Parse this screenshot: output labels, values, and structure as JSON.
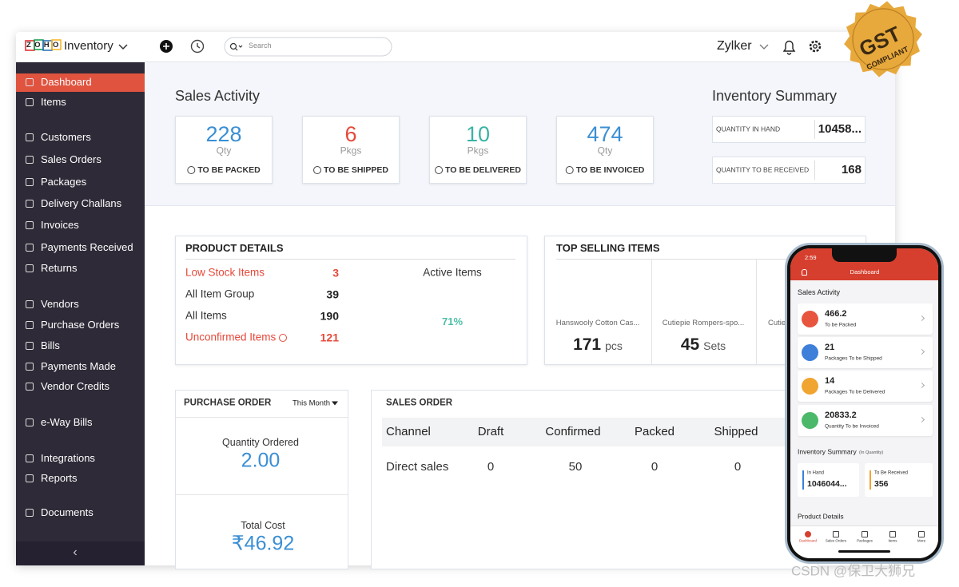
{
  "topbar": {
    "logo": "ZOHO",
    "app": "Inventory",
    "search": "Search",
    "org": "Zylker"
  },
  "sidebar": {
    "items": [
      "Dashboard",
      "Items",
      "Customers",
      "Sales Orders",
      "Packages",
      "Delivery Challans",
      "Invoices",
      "Payments Received",
      "Returns",
      "Vendors",
      "Purchase Orders",
      "Bills",
      "Payments Made",
      "Vendor Credits",
      "e-Way Bills",
      "Integrations",
      "Reports",
      "Documents"
    ],
    "collapse": "‹"
  },
  "sales_activity": {
    "title": "Sales Activity",
    "cards": [
      {
        "value": "228",
        "unit": "Qty",
        "label": "TO BE PACKED",
        "color": "#3b8fd4"
      },
      {
        "value": "6",
        "unit": "Pkgs",
        "label": "TO BE SHIPPED",
        "color": "#e5493a"
      },
      {
        "value": "10",
        "unit": "Pkgs",
        "label": "TO BE DELIVERED",
        "color": "#3bb3a6"
      },
      {
        "value": "474",
        "unit": "Qty",
        "label": "TO BE INVOICED",
        "color": "#3b8fd4"
      }
    ]
  },
  "inventory_summary": {
    "title": "Inventory Summary",
    "rows": [
      {
        "label": "QUANTITY IN HAND",
        "value": "10458..."
      },
      {
        "label": "QUANTITY TO BE RECEIVED",
        "value": "168"
      }
    ]
  },
  "product_details": {
    "title": "PRODUCT DETAILS",
    "rows": [
      {
        "label": "Low Stock Items",
        "value": "3",
        "alert": true
      },
      {
        "label": "All Item Group",
        "value": "39",
        "alert": false
      },
      {
        "label": "All Items",
        "value": "190",
        "alert": false
      },
      {
        "label": "Unconfirmed Items",
        "value": "121",
        "alert": true
      }
    ],
    "active_items": {
      "title": "Active Items",
      "value": 71,
      "value_label": "71%"
    }
  },
  "top_selling": {
    "title": "TOP SELLING ITEMS",
    "items": [
      {
        "name": "Hanswooly Cotton Cas...",
        "qty": "171",
        "unit": "pcs"
      },
      {
        "name": "Cutiepie Rompers-spo...",
        "qty": "45",
        "unit": "Sets"
      },
      {
        "name": "Cutie"
      }
    ]
  },
  "purchase_order": {
    "title": "PURCHASE ORDER",
    "period": "This Month",
    "qty_label": "Quantity Ordered",
    "qty": "2.00",
    "cost_label": "Total Cost",
    "cost": "₹46.92"
  },
  "sales_order": {
    "title": "SALES ORDER",
    "columns": [
      "Channel",
      "Draft",
      "Confirmed",
      "Packed",
      "Shipped"
    ],
    "rows": [
      [
        "Direct sales",
        "0",
        "50",
        "0",
        "0"
      ]
    ]
  },
  "phone": {
    "time": "2:59",
    "header": "Dashboard",
    "section": "Sales Activity",
    "cards": [
      {
        "value": "466.2",
        "label": "To be Packed",
        "color": "#e8553f"
      },
      {
        "value": "21",
        "label": "Packages To be Shipped",
        "color": "#3d7fd9"
      },
      {
        "value": "14",
        "label": "Packages To be Delivered",
        "color": "#f0a531"
      },
      {
        "value": "20833.2",
        "label": "Quantity To be Invoiced",
        "color": "#4bb86a"
      }
    ],
    "summary_title": "Inventory Summary",
    "summary_note": "(In Quantity)",
    "summary": [
      {
        "label": "In Hand",
        "value": "1046044...",
        "color": "#3d7fd9"
      },
      {
        "label": "To Be Received",
        "value": "356",
        "color": "#f0a531"
      }
    ],
    "details_title": "Product Details",
    "tabs": [
      "Dashboard",
      "Sales Orders",
      "Packages",
      "Items",
      "More"
    ]
  },
  "badge": {
    "title": "GST",
    "subtitle": "COMPLIANT"
  },
  "watermark": "CSDN @保卫大狮兄"
}
